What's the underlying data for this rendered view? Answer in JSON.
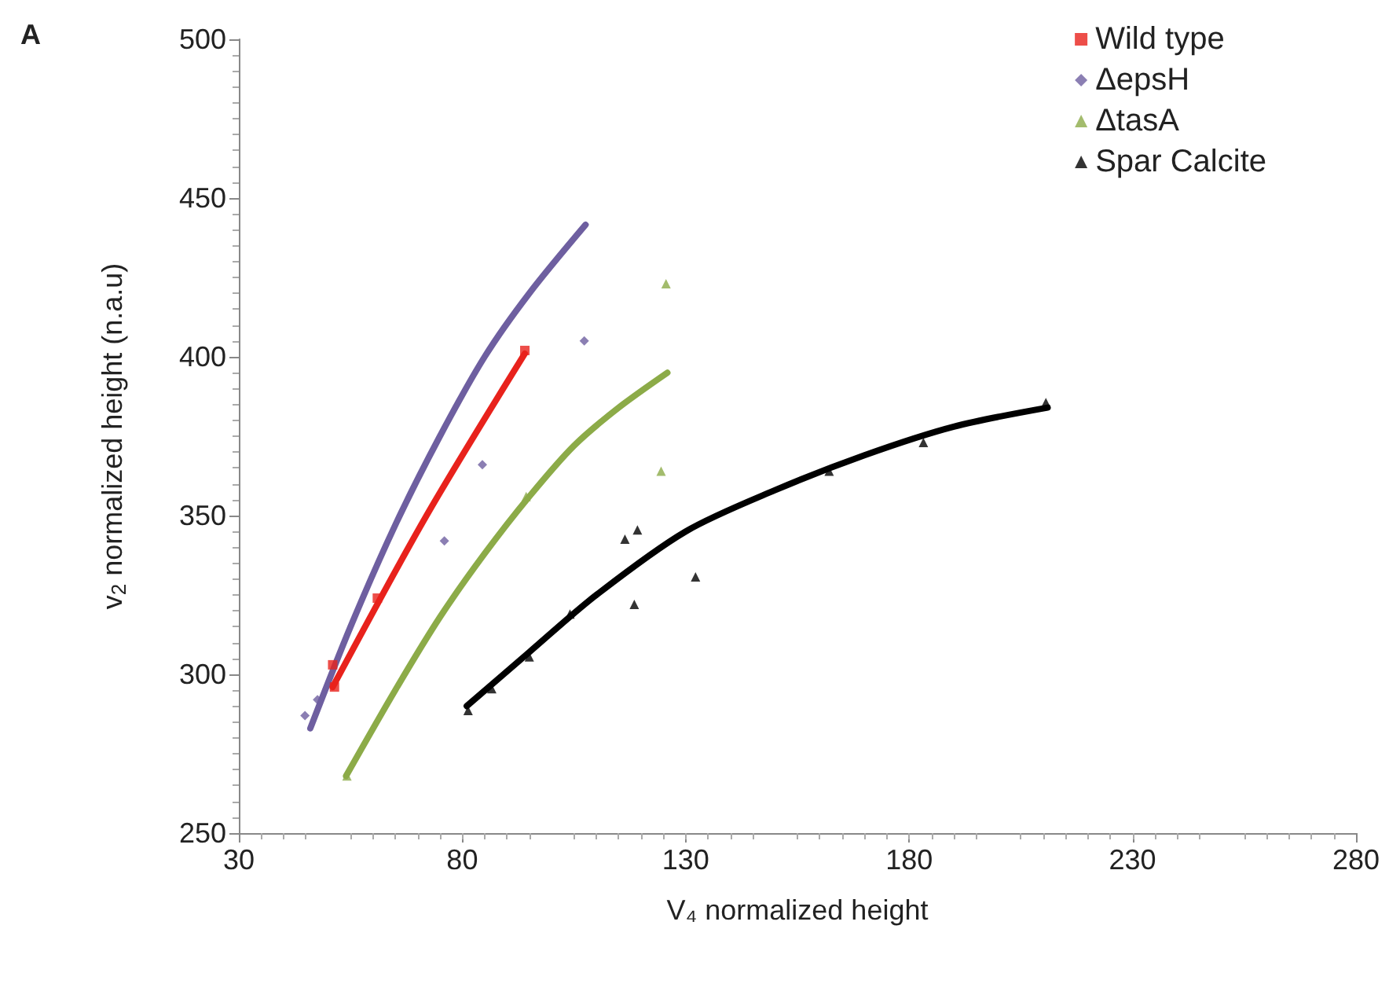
{
  "chart_data": {
    "type": "scatter",
    "title": "A",
    "xlabel": "V₄ normalized height",
    "ylabel": "v$_{2}$ normalized height (n.a.u)",
    "xlim": [
      30,
      280
    ],
    "xticks": [
      30,
      80,
      130,
      180,
      230,
      280
    ],
    "ylim": [
      250,
      500
    ],
    "yticks": [
      250,
      300,
      350,
      400,
      450,
      500
    ],
    "grid": false,
    "legend": "top right",
    "series": [
      {
        "name": "Wild type",
        "marker": "square",
        "color": "#e8221c",
        "x": [
          51,
          51.4,
          61,
          94
        ],
        "values": [
          303,
          296,
          324,
          402
        ]
      },
      {
        "name": "ΔepsH",
        "marker": "diamond",
        "color": "#6e5fa0",
        "x": [
          44.8,
          47.6,
          76,
          84.5,
          107.3
        ],
        "values": [
          287,
          292,
          342,
          366,
          405
        ]
      },
      {
        "name": "ΔtasA",
        "marker": "triangle",
        "color": "#8cab48",
        "x": [
          54.2,
          94.3,
          124.5,
          125.6
        ],
        "values": [
          268,
          356,
          364,
          423
        ]
      },
      {
        "name": "Spar Calcite",
        "marker": "triangle",
        "color": "#000000",
        "x": [
          81.3,
          86.6,
          95,
          104.1,
          116.4,
          119.2,
          118.5,
          132.2,
          162.1,
          183.2,
          210.6
        ],
        "values": [
          288.6,
          295.5,
          305.5,
          319,
          342.6,
          345.5,
          322,
          330.7,
          364,
          373,
          385.6
        ]
      },
      {
        "type": "line",
        "marker": "none",
        "color": "#6e5fa0",
        "x": [
          46,
          55,
          65,
          75,
          85,
          95,
          107.6
        ],
        "values": [
          283,
          315,
          347,
          375,
          400,
          420,
          441.6
        ]
      },
      {
        "type": "line",
        "marker": "none",
        "color": "#e8221c",
        "x": [
          51,
          72,
          94
        ],
        "values": [
          296,
          350,
          401
        ]
      },
      {
        "type": "line",
        "marker": "none",
        "color": "#8cab48",
        "x": [
          54,
          65,
          75,
          85,
          95,
          105,
          115,
          125.9
        ],
        "values": [
          268,
          295,
          318,
          338,
          356,
          372,
          384,
          395
        ]
      },
      {
        "type": "line",
        "marker": "none",
        "color": "#000000",
        "x": [
          81,
          95,
          110,
          130,
          150,
          170,
          190,
          211
        ],
        "values": [
          290,
          307,
          325,
          345,
          358,
          369,
          378,
          384
        ]
      }
    ]
  }
}
